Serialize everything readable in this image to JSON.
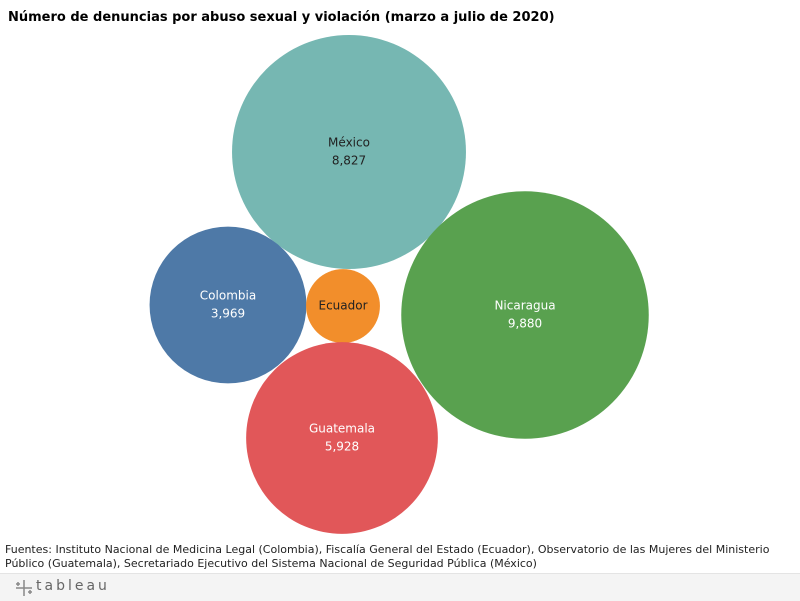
{
  "chart_data": {
    "type": "bubble",
    "title": "Número de denuncias por abuso sexual y violación (marzo a julio de 2020)",
    "categories": [
      "México",
      "Nicaragua",
      "Colombia",
      "Ecuador",
      "Guatemala"
    ],
    "values": [
      8827,
      9880,
      3969,
      880,
      5928
    ],
    "value_labels": [
      "8,827",
      "9,880",
      "3,969",
      null,
      "5,928"
    ],
    "colors": [
      "#76b7b2",
      "#59a14f",
      "#4e79a7",
      "#f28e2b",
      "#e15759"
    ],
    "source": "Fuentes: Instituto Nacional de Medicina Legal (Colombia), Fiscalía General del Estado (Ecuador), Observatorio de las Mujeres del Ministerio Público (Guatemala), Secretariado Ejecutivo del Sistema Nacional de Seguridad Pública (México)"
  },
  "logo": "tableau"
}
